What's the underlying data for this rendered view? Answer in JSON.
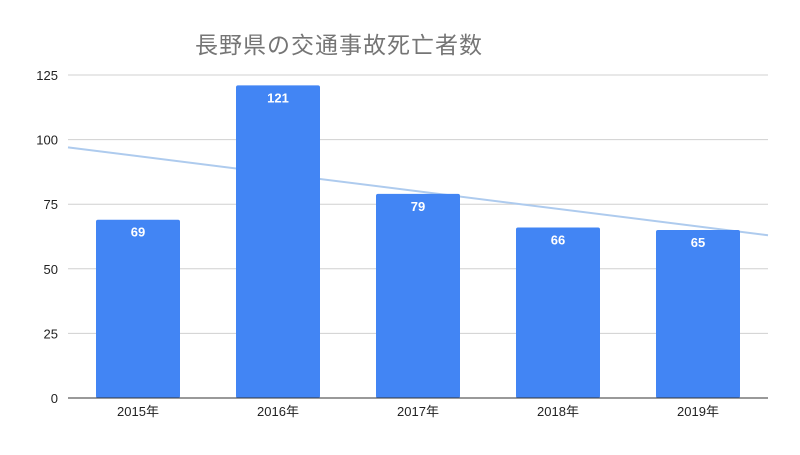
{
  "chart_data": {
    "type": "bar",
    "title": "長野県の交通事故死亡者数",
    "xlabel": "",
    "ylabel": "",
    "categories": [
      "2015年",
      "2016年",
      "2017年",
      "2018年",
      "2019年"
    ],
    "values": [
      69,
      121,
      79,
      66,
      65
    ],
    "data_labels": [
      "69",
      "121",
      "79",
      "66",
      "65"
    ],
    "ylim": [
      0,
      125
    ],
    "yticks": [
      0,
      25,
      50,
      75,
      100,
      125
    ],
    "ytick_labels": [
      "0",
      "25",
      "50",
      "75",
      "100",
      "125"
    ],
    "grid": true,
    "trendline": {
      "type": "linear",
      "start_value": 97,
      "end_value": 63,
      "color": "#aecbee"
    },
    "colors": {
      "bar": "#4285f4",
      "label": "#ffffff"
    }
  }
}
